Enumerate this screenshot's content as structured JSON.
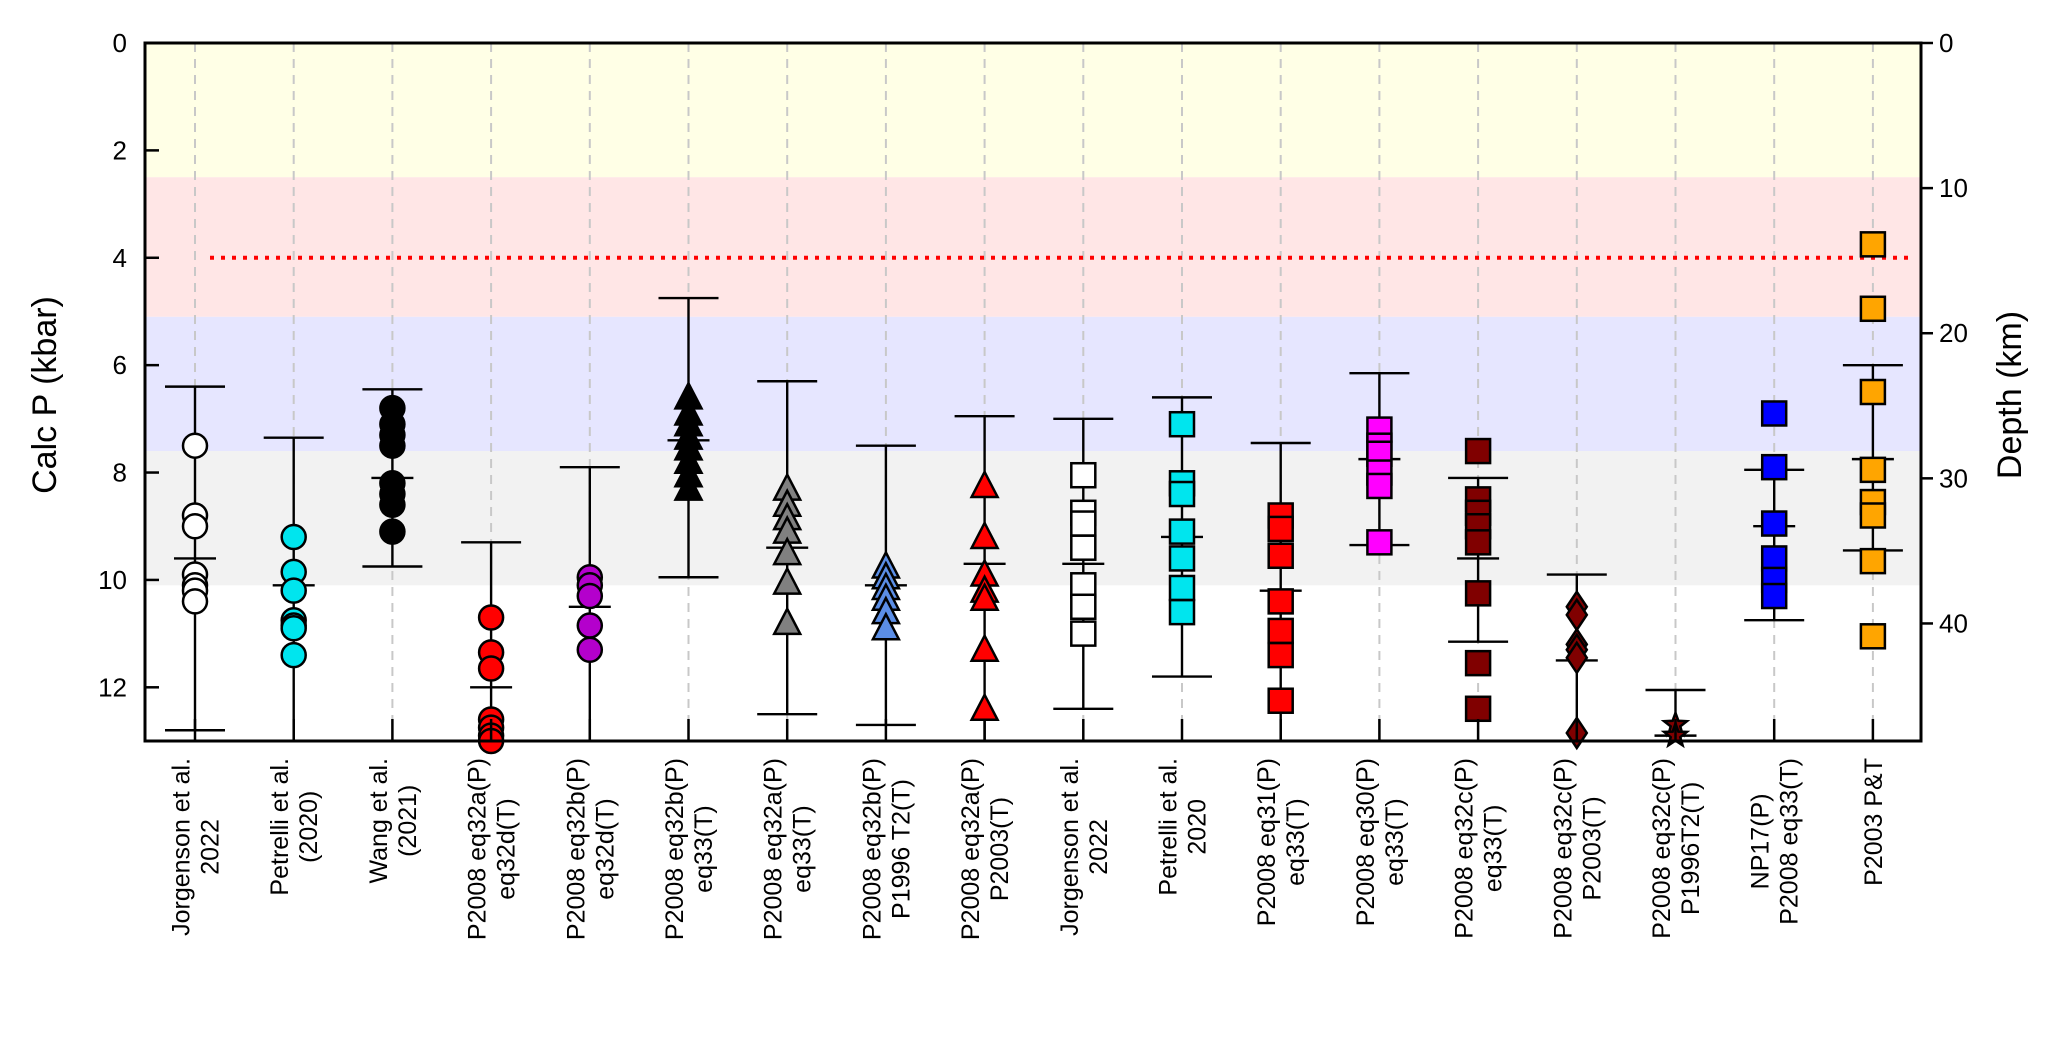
{
  "chart_data": {
    "type": "scatter",
    "ylabel": "Calc P (kbar)",
    "y2label": "Depth (km)",
    "ylim": [
      0,
      13
    ],
    "y_inverted": true,
    "yticks": [
      0,
      2,
      4,
      6,
      8,
      10,
      12
    ],
    "y2ticks": [
      0,
      10,
      20,
      30,
      40
    ],
    "y2_km_per_kbar": 3.7,
    "reference_line": {
      "y": 4.0,
      "color": "#ff0000",
      "style": "dotted"
    },
    "bands": [
      {
        "from": 0,
        "to": 2.5,
        "color": "#ffffe6"
      },
      {
        "from": 2.5,
        "to": 5.1,
        "color": "#ffe6e6"
      },
      {
        "from": 5.1,
        "to": 7.6,
        "color": "#e6e6ff"
      },
      {
        "from": 7.6,
        "to": 10.1,
        "color": "#f2f2f2"
      }
    ],
    "grid": "vertical dashed",
    "categories": [
      [
        "Jorgenson et al.",
        "2022"
      ],
      [
        "Petrelli et al.",
        "(2020)"
      ],
      [
        "Wang et al.",
        "(2021)"
      ],
      [
        "P2008 eq32a(P)",
        "eq32d(T)"
      ],
      [
        "P2008 eq32b(P)",
        "eq32d(T)"
      ],
      [
        "P2008 eq32b(P)",
        "eq33(T)"
      ],
      [
        "P2008 eq32a(P)",
        "eq33(T)"
      ],
      [
        "P2008 eq32b(P)",
        "P1996 T2(T)"
      ],
      [
        "P2008 eq32a(P)",
        "P2003(T)"
      ],
      [
        "Jorgenson et al.",
        "2022"
      ],
      [
        "Petrelli et al.",
        "2020"
      ],
      [
        "P2008 eq31(P)",
        "eq33(T)"
      ],
      [
        "P2008 eq30(P)",
        "eq33(T)"
      ],
      [
        "P2008 eq32c(P)",
        "eq33(T)"
      ],
      [
        "P2008 eq32c(P)",
        "P2003(T)"
      ],
      [
        "P2008 eq32c(P)",
        "P1996T2(T)"
      ],
      [
        "NP17(P)",
        "P2008 eq33(T)"
      ],
      [
        "P2003 P&T"
      ]
    ],
    "series": [
      {
        "marker": "circle",
        "color": "#ffffff",
        "mean": 9.6,
        "err_low": 6.4,
        "err_high": 12.8,
        "values": [
          7.5,
          8.8,
          9.0,
          9.9,
          10.1,
          10.2,
          10.4
        ]
      },
      {
        "marker": "circle",
        "color": "#00e5ee",
        "mean": 10.1,
        "err_low": 7.35,
        "err_high": 13.0,
        "values": [
          9.2,
          9.85,
          10.2,
          10.75,
          10.85,
          10.9,
          11.4
        ]
      },
      {
        "marker": "circle",
        "color": "#000000",
        "mean": 8.1,
        "err_low": 6.45,
        "err_high": 9.75,
        "values": [
          6.8,
          7.1,
          7.3,
          7.5,
          8.2,
          8.4,
          8.6,
          9.1
        ]
      },
      {
        "marker": "circle",
        "color": "#ff0000",
        "mean": 12.0,
        "err_low": 9.3,
        "err_high": 13.0,
        "values": [
          10.7,
          11.35,
          11.65,
          12.6,
          12.75,
          12.9,
          13.0
        ]
      },
      {
        "marker": "circle",
        "color": "#b400cc",
        "mean": 10.5,
        "err_low": 7.9,
        "err_high": 13.0,
        "values": [
          9.95,
          10.1,
          10.3,
          10.85,
          11.3
        ]
      },
      {
        "marker": "triangle",
        "color": "#000000",
        "mean": 7.4,
        "err_low": 4.75,
        "err_high": 9.95,
        "values": [
          6.6,
          6.9,
          7.1,
          7.35,
          7.55,
          7.8,
          8.05,
          8.3
        ]
      },
      {
        "marker": "triangle",
        "color": "#808080",
        "mean": 9.4,
        "err_low": 6.3,
        "err_high": 12.5,
        "values": [
          8.3,
          8.6,
          8.85,
          9.1,
          9.5,
          10.05,
          10.8
        ]
      },
      {
        "marker": "triangle",
        "color": "#5b8ee6",
        "mean": 10.1,
        "err_low": 7.5,
        "err_high": 12.7,
        "values": [
          9.75,
          9.95,
          10.15,
          10.35,
          10.6,
          10.9
        ]
      },
      {
        "marker": "triangle",
        "color": "#ff0000",
        "mean": 9.7,
        "err_low": 6.95,
        "err_high": 13.0,
        "values": [
          8.25,
          9.2,
          9.9,
          10.2,
          10.35,
          11.3,
          12.4
        ]
      },
      {
        "marker": "square",
        "color": "#ffffff",
        "mean": 9.7,
        "err_low": 7.0,
        "err_high": 12.4,
        "values": [
          8.05,
          8.75,
          8.95,
          9.4,
          10.1,
          10.5,
          11.0
        ]
      },
      {
        "marker": "square",
        "color": "#00e5ee",
        "mean": 9.2,
        "err_low": 6.6,
        "err_high": 11.8,
        "values": [
          7.1,
          8.2,
          8.4,
          9.1,
          9.6,
          10.15,
          10.6
        ]
      },
      {
        "marker": "square",
        "color": "#ff0000",
        "mean": 10.2,
        "err_low": 7.45,
        "err_high": 13.0,
        "values": [
          8.8,
          9.05,
          9.55,
          10.4,
          10.95,
          11.4,
          12.25
        ]
      },
      {
        "marker": "square",
        "color": "#ff00ff",
        "mean": 7.75,
        "err_low": 6.15,
        "err_high": 9.35,
        "values": [
          7.2,
          7.5,
          7.65,
          8.0,
          8.25,
          9.3
        ]
      },
      {
        "marker": "square",
        "color": "#800000",
        "mean": 9.6,
        "err_low": 8.1,
        "err_high": 11.15,
        "values": [
          7.6,
          8.5,
          8.75,
          9.0,
          9.3,
          10.25,
          11.55,
          12.4
        ]
      },
      {
        "marker": "diamond",
        "color": "#800000",
        "mean": 11.5,
        "err_low": 9.9,
        "err_high": 13.0,
        "values": [
          10.5,
          10.65,
          11.2,
          11.3,
          11.45,
          12.85
        ]
      },
      {
        "marker": "star",
        "color": "#800000",
        "mean": 12.9,
        "err_low": 12.05,
        "err_high": 13.0,
        "values": [
          12.7,
          12.9
        ]
      },
      {
        "marker": "square",
        "color": "#0000ff",
        "mean": 9.0,
        "err_low": 7.95,
        "err_high": 10.75,
        "values": [
          6.9,
          7.9,
          8.95,
          9.6,
          10.0,
          10.3
        ]
      },
      {
        "marker": "square",
        "color": "#ffa500",
        "mean": 7.75,
        "err_low": 6.0,
        "err_high": 9.45,
        "values": [
          3.75,
          4.95,
          6.5,
          7.95,
          8.55,
          8.8,
          9.65,
          11.05
        ]
      }
    ]
  }
}
